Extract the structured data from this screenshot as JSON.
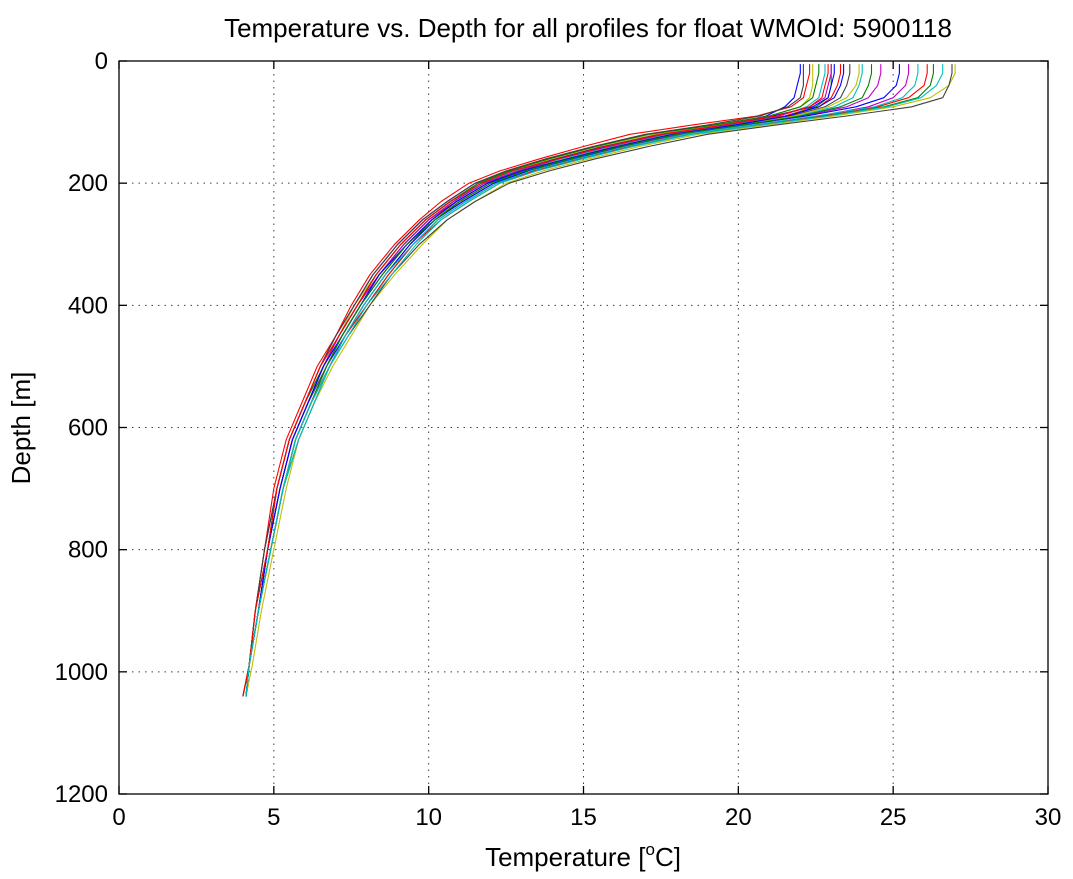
{
  "chart_data": {
    "type": "line",
    "title": "Temperature vs. Depth for all profiles for float WMOId: 5900118",
    "xlabel": "Temperature [",
    "xlabel_sup": "o",
    "xlabel_tail": "C]",
    "ylabel": "Depth [m]",
    "xlim": [
      0,
      30
    ],
    "ylim": [
      0,
      1200
    ],
    "y_reversed": true,
    "grid": true,
    "x_ticks": [
      "0",
      "5",
      "10",
      "15",
      "20",
      "25",
      "30"
    ],
    "y_ticks": [
      "0",
      "200",
      "400",
      "600",
      "800",
      "1000",
      "1200"
    ],
    "depths": [
      5,
      20,
      40,
      60,
      75,
      90,
      105,
      120,
      140,
      160,
      180,
      200,
      230,
      260,
      300,
      350,
      400,
      450,
      500,
      560,
      620,
      700,
      800,
      900,
      990,
      1040
    ],
    "series": [
      {
        "color": "#0000ff",
        "values": [
          22.0,
          22.0,
          21.9,
          21.8,
          21.5,
          20.9,
          19.6,
          17.6,
          15.8,
          14.0,
          12.6,
          11.5,
          10.6,
          9.8,
          9.0,
          8.2,
          7.6,
          7.0,
          6.5,
          6.0,
          5.5,
          5.1,
          4.7,
          4.4,
          4.2,
          4.1
        ]
      },
      {
        "color": "#008000",
        "values": [
          23.0,
          23.0,
          23.0,
          22.9,
          22.5,
          21.5,
          19.8,
          17.8,
          15.9,
          14.3,
          12.9,
          11.8,
          10.8,
          10.0,
          9.2,
          8.4,
          7.7,
          7.1,
          6.6,
          6.1,
          5.6,
          5.2,
          4.8,
          4.5,
          4.2,
          4.1
        ]
      },
      {
        "color": "#ff0000",
        "values": [
          22.3,
          22.3,
          22.2,
          22.1,
          21.7,
          20.6,
          18.5,
          16.5,
          15.0,
          13.6,
          12.3,
          11.3,
          10.4,
          9.7,
          8.9,
          8.1,
          7.5,
          7.0,
          6.4,
          5.9,
          5.4,
          5.0,
          4.7,
          4.4,
          4.2,
          4.0
        ]
      },
      {
        "color": "#00bfbf",
        "values": [
          24.0,
          24.0,
          23.9,
          23.7,
          23.1,
          21.9,
          20.1,
          18.0,
          16.1,
          14.6,
          13.1,
          12.0,
          11.0,
          10.1,
          9.3,
          8.5,
          7.8,
          7.2,
          6.7,
          6.2,
          5.7,
          5.3,
          4.9,
          4.5,
          4.2,
          4.1
        ]
      },
      {
        "color": "#bf00bf",
        "values": [
          25.5,
          25.5,
          25.4,
          25.0,
          24.2,
          22.6,
          20.4,
          18.2,
          16.3,
          14.8,
          13.3,
          12.1,
          11.1,
          10.2,
          9.4,
          8.6,
          7.9,
          7.3,
          6.8,
          6.2,
          5.7,
          5.3,
          4.9,
          4.5,
          4.2,
          4.1
        ]
      },
      {
        "color": "#bfbf00",
        "values": [
          27.0,
          27.0,
          26.8,
          26.2,
          25.0,
          23.1,
          20.9,
          18.7,
          16.8,
          15.2,
          13.7,
          12.5,
          11.5,
          10.6,
          9.8,
          8.9,
          8.1,
          7.5,
          6.9,
          6.3,
          5.8,
          5.4,
          5.0,
          4.6,
          4.3,
          4.1
        ]
      },
      {
        "color": "#404040",
        "values": [
          26.9,
          26.9,
          26.8,
          26.6,
          25.6,
          23.5,
          21.2,
          19.0,
          17.1,
          15.4,
          13.9,
          12.6,
          11.5,
          10.6,
          9.7,
          8.8,
          8.1,
          7.4,
          6.8,
          6.3,
          5.8,
          5.3,
          4.9,
          4.5,
          4.2,
          4.1
        ]
      },
      {
        "color": "#0000ff",
        "values": [
          23.1,
          23.1,
          23.0,
          22.9,
          22.4,
          21.1,
          19.4,
          17.4,
          15.6,
          14.1,
          12.8,
          11.7,
          10.7,
          9.9,
          9.1,
          8.3,
          7.7,
          7.1,
          6.6,
          6.1,
          5.6,
          5.2,
          4.8,
          4.5,
          4.2,
          4.1
        ]
      },
      {
        "color": "#008000",
        "values": [
          26.3,
          26.3,
          26.2,
          25.8,
          24.7,
          22.8,
          20.5,
          18.3,
          16.4,
          14.9,
          13.4,
          12.2,
          11.2,
          10.3,
          9.5,
          8.7,
          8.0,
          7.3,
          6.8,
          6.2,
          5.7,
          5.3,
          4.9,
          4.5,
          4.2,
          4.1
        ]
      },
      {
        "color": "#ff0000",
        "values": [
          23.3,
          23.3,
          23.2,
          23.0,
          22.6,
          21.5,
          19.9,
          17.9,
          16.0,
          14.5,
          13.0,
          11.9,
          10.9,
          10.0,
          9.2,
          8.4,
          7.8,
          7.2,
          6.6,
          6.1,
          5.6,
          5.2,
          4.8,
          4.5,
          4.2,
          4.0
        ]
      },
      {
        "color": "#00bfbf",
        "values": [
          22.8,
          22.8,
          22.7,
          22.6,
          22.2,
          21.3,
          19.7,
          17.7,
          15.9,
          14.3,
          12.8,
          11.7,
          10.8,
          10.0,
          9.2,
          8.4,
          7.7,
          7.1,
          6.6,
          6.1,
          5.6,
          5.2,
          4.8,
          4.5,
          4.2,
          4.1
        ]
      },
      {
        "color": "#bf00bf",
        "values": [
          24.6,
          24.6,
          24.5,
          24.2,
          23.5,
          22.1,
          20.2,
          18.1,
          16.2,
          14.6,
          13.2,
          12.0,
          11.0,
          10.2,
          9.3,
          8.5,
          7.8,
          7.2,
          6.7,
          6.2,
          5.7,
          5.3,
          4.9,
          4.5,
          4.2,
          4.1
        ]
      },
      {
        "color": "#bfbf00",
        "values": [
          22.4,
          22.4,
          22.4,
          22.3,
          22.0,
          21.0,
          19.3,
          17.3,
          15.5,
          14.0,
          12.6,
          11.6,
          10.7,
          9.9,
          9.1,
          8.3,
          7.6,
          7.1,
          6.5,
          6.0,
          5.5,
          5.1,
          4.8,
          4.4,
          4.2,
          4.0
        ]
      },
      {
        "color": "#404040",
        "values": [
          23.6,
          23.6,
          23.5,
          23.3,
          22.8,
          21.7,
          19.9,
          17.9,
          16.1,
          14.5,
          13.0,
          11.9,
          10.9,
          10.1,
          9.3,
          8.5,
          7.8,
          7.2,
          6.7,
          6.1,
          5.6,
          5.2,
          4.8,
          4.5,
          4.2,
          4.1
        ]
      },
      {
        "color": "#0000ff",
        "values": [
          25.2,
          25.2,
          25.1,
          24.7,
          23.8,
          22.2,
          20.1,
          18.0,
          16.2,
          14.7,
          13.2,
          12.1,
          11.1,
          10.2,
          9.4,
          8.6,
          7.9,
          7.3,
          6.7,
          6.2,
          5.7,
          5.3,
          4.9,
          4.5,
          4.2,
          4.1
        ]
      },
      {
        "color": "#008000",
        "values": [
          22.6,
          22.6,
          22.5,
          22.4,
          22.0,
          21.0,
          19.2,
          17.1,
          15.4,
          13.9,
          12.6,
          11.6,
          10.7,
          9.9,
          9.1,
          8.3,
          7.7,
          7.1,
          6.6,
          6.0,
          5.5,
          5.1,
          4.8,
          4.4,
          4.2,
          4.0
        ]
      },
      {
        "color": "#ff0000",
        "values": [
          26.1,
          26.1,
          26.0,
          25.5,
          24.5,
          22.6,
          20.6,
          18.4,
          16.5,
          14.9,
          13.4,
          12.3,
          11.3,
          10.4,
          9.5,
          8.7,
          8.0,
          7.3,
          6.8,
          6.2,
          5.7,
          5.3,
          4.9,
          4.5,
          4.2,
          4.1
        ]
      },
      {
        "color": "#00bfbf",
        "values": [
          26.6,
          26.6,
          26.4,
          25.9,
          24.8,
          22.9,
          20.7,
          18.5,
          16.6,
          15.0,
          13.5,
          12.3,
          11.3,
          10.4,
          9.6,
          8.8,
          8.0,
          7.4,
          6.8,
          6.3,
          5.8,
          5.3,
          4.9,
          4.5,
          4.2,
          4.1
        ]
      },
      {
        "color": "#bf00bf",
        "values": [
          23.0,
          23.0,
          22.9,
          22.8,
          22.3,
          21.3,
          19.6,
          17.6,
          15.8,
          14.2,
          12.9,
          11.8,
          10.8,
          10.0,
          9.2,
          8.4,
          7.7,
          7.1,
          6.6,
          6.1,
          5.6,
          5.2,
          4.8,
          4.5,
          4.2,
          4.1
        ]
      },
      {
        "color": "#bfbf00",
        "values": [
          23.9,
          23.9,
          23.8,
          23.5,
          22.9,
          21.8,
          20.0,
          18.0,
          16.1,
          14.6,
          13.1,
          12.0,
          11.0,
          10.1,
          9.3,
          8.5,
          7.8,
          7.2,
          6.7,
          6.2,
          5.7,
          5.3,
          4.9,
          4.5,
          4.2,
          4.1
        ]
      },
      {
        "color": "#404040",
        "values": [
          22.1,
          22.1,
          22.1,
          22.0,
          21.6,
          20.7,
          19.0,
          17.0,
          15.3,
          13.8,
          12.5,
          11.5,
          10.6,
          9.8,
          9.0,
          8.2,
          7.6,
          7.0,
          6.5,
          6.0,
          5.5,
          5.1,
          4.7,
          4.4,
          4.2,
          4.0
        ]
      },
      {
        "color": "#0000ff",
        "values": [
          23.4,
          23.4,
          23.3,
          23.1,
          22.6,
          21.6,
          19.9,
          17.9,
          16.1,
          14.5,
          13.0,
          11.9,
          10.9,
          10.1,
          9.3,
          8.4,
          7.8,
          7.2,
          6.6,
          6.1,
          5.6,
          5.2,
          4.8,
          4.5,
          4.2,
          4.1
        ]
      },
      {
        "color": "#008000",
        "values": [
          24.3,
          24.3,
          24.2,
          24.0,
          23.3,
          22.0,
          20.1,
          18.0,
          16.2,
          14.6,
          13.1,
          12.0,
          11.0,
          10.2,
          9.3,
          8.5,
          7.8,
          7.2,
          6.7,
          6.2,
          5.7,
          5.3,
          4.9,
          4.5,
          4.2,
          4.1
        ]
      },
      {
        "color": "#ff0000",
        "values": [
          22.9,
          22.9,
          22.8,
          22.7,
          22.3,
          21.2,
          19.5,
          17.5,
          15.7,
          14.2,
          12.7,
          11.7,
          10.7,
          9.9,
          9.1,
          8.3,
          7.7,
          7.1,
          6.5,
          6.0,
          5.5,
          5.1,
          4.8,
          4.4,
          4.2,
          4.0
        ]
      },
      {
        "color": "#00bfbf",
        "values": [
          25.8,
          25.8,
          25.7,
          25.3,
          24.4,
          22.5,
          20.4,
          18.3,
          16.4,
          14.8,
          13.3,
          12.2,
          11.2,
          10.3,
          9.5,
          8.6,
          7.9,
          7.3,
          6.8,
          6.2,
          5.7,
          5.3,
          4.9,
          4.5,
          4.2,
          4.1
        ]
      }
    ]
  }
}
